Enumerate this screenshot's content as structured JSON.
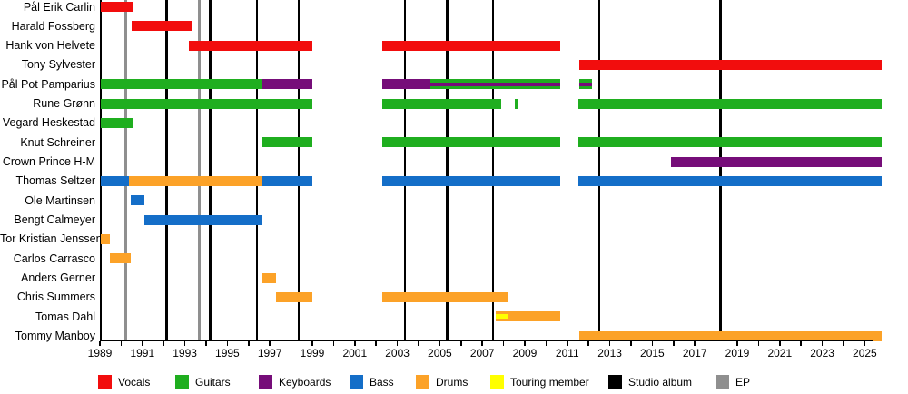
{
  "chart_data": {
    "type": "timeline",
    "description": "Band members timeline with instrument roles and release markers",
    "x_axis": {
      "start_year": 1989,
      "end_year": 2025,
      "tick_label_years": [
        1989,
        1991,
        1993,
        1995,
        1997,
        1999,
        2001,
        2003,
        2005,
        2007,
        2009,
        2011,
        2013,
        2015,
        2017,
        2019,
        2021,
        2023,
        2025
      ]
    },
    "role_colors": {
      "vocals": "#f20d0d",
      "guitars": "#1fae1f",
      "keyboards": "#760d79",
      "bass": "#146ec8",
      "drums": "#fca228",
      "touring": "#ffff00"
    },
    "releases": {
      "studio_album_color": "#000000",
      "ep_color": "#8f8f8f",
      "studio_album_years": [
        1992.15,
        1994.2,
        1996.4,
        1998.35,
        2003.35,
        2005.35,
        2007.5,
        2012.5,
        2018.2
      ],
      "ep_years": [
        1990.2,
        1993.7
      ]
    },
    "legend": [
      {
        "label": "Vocals",
        "color": "#f20d0d"
      },
      {
        "label": "Guitars",
        "color": "#1fae1f"
      },
      {
        "label": "Keyboards",
        "color": "#760d79"
      },
      {
        "label": "Bass",
        "color": "#146ec8"
      },
      {
        "label": "Drums",
        "color": "#fca228"
      },
      {
        "label": "Touring member",
        "color": "#ffff00"
      },
      {
        "label": "Studio album",
        "color": "#000000"
      },
      {
        "label": "EP",
        "color": "#8f8f8f"
      }
    ],
    "members": [
      {
        "name": "Pål Erik Carlin",
        "segments": [
          {
            "roles": [
              "vocals"
            ],
            "start": 1989.05,
            "end": 1990.55
          }
        ]
      },
      {
        "name": "Harald Fossberg",
        "segments": [
          {
            "roles": [
              "vocals"
            ],
            "start": 1990.5,
            "end": 1993.3
          }
        ]
      },
      {
        "name": "Hank von Helvete",
        "segments": [
          {
            "roles": [
              "vocals"
            ],
            "start": 1993.2,
            "end": 1999.0
          },
          {
            "roles": [
              "vocals"
            ],
            "start": 2002.3,
            "end": 2010.65
          }
        ]
      },
      {
        "name": "Tony Sylvester",
        "segments": [
          {
            "roles": [
              "vocals"
            ],
            "start": 2011.55,
            "end": 2025.8
          }
        ]
      },
      {
        "name": "Pål Pot Pamparius",
        "segments": [
          {
            "roles": [
              "guitars"
            ],
            "start": 1989.05,
            "end": 1996.65
          },
          {
            "roles": [
              "keyboards"
            ],
            "start": 1996.65,
            "end": 1999.0
          },
          {
            "roles": [
              "keyboards"
            ],
            "start": 2002.3,
            "end": 2004.55
          },
          {
            "roles": [
              "guitars",
              "keyboards"
            ],
            "start": 2004.55,
            "end": 2010.65
          },
          {
            "roles": [
              "guitars",
              "keyboards"
            ],
            "start": 2011.55,
            "end": 2012.15
          }
        ]
      },
      {
        "name": "Rune Grønn",
        "segments": [
          {
            "roles": [
              "guitars"
            ],
            "start": 1989.05,
            "end": 1999.0
          },
          {
            "roles": [
              "guitars"
            ],
            "start": 2002.3,
            "end": 2007.9
          },
          {
            "roles": [
              "guitars"
            ],
            "start": 2008.55,
            "end": 2008.65
          },
          {
            "roles": [
              "guitars"
            ],
            "start": 2011.5,
            "end": 2025.8
          }
        ]
      },
      {
        "name": "Vegard Heskestad",
        "segments": [
          {
            "roles": [
              "guitars"
            ],
            "start": 1989.05,
            "end": 1990.55
          }
        ]
      },
      {
        "name": "Knut Schreiner",
        "segments": [
          {
            "roles": [
              "guitars"
            ],
            "start": 1996.65,
            "end": 1999.0
          },
          {
            "roles": [
              "guitars"
            ],
            "start": 2002.3,
            "end": 2010.65
          },
          {
            "roles": [
              "guitars"
            ],
            "start": 2011.5,
            "end": 2025.8
          }
        ]
      },
      {
        "name": "Crown Prince H-M",
        "segments": [
          {
            "roles": [
              "keyboards"
            ],
            "start": 2015.9,
            "end": 2025.8
          }
        ]
      },
      {
        "name": "Thomas Seltzer",
        "segments": [
          {
            "roles": [
              "bass"
            ],
            "start": 1989.05,
            "end": 1990.35
          },
          {
            "roles": [
              "drums"
            ],
            "start": 1990.35,
            "end": 1996.65
          },
          {
            "roles": [
              "bass"
            ],
            "start": 1996.65,
            "end": 1999.0
          },
          {
            "roles": [
              "bass"
            ],
            "start": 2002.3,
            "end": 2010.65
          },
          {
            "roles": [
              "bass"
            ],
            "start": 2011.5,
            "end": 2025.8
          }
        ]
      },
      {
        "name": "Ole Martinsen",
        "segments": [
          {
            "roles": [
              "bass"
            ],
            "start": 1990.45,
            "end": 1991.1
          }
        ]
      },
      {
        "name": "Bengt Calmeyer",
        "segments": [
          {
            "roles": [
              "bass"
            ],
            "start": 1991.1,
            "end": 1996.65
          }
        ]
      },
      {
        "name": "Tor Kristian Jenssen",
        "segments": [
          {
            "roles": [
              "drums"
            ],
            "start": 1989.05,
            "end": 1989.45
          }
        ]
      },
      {
        "name": "Carlos Carrasco",
        "segments": [
          {
            "roles": [
              "drums"
            ],
            "start": 1989.45,
            "end": 1990.45
          }
        ]
      },
      {
        "name": "Anders Gerner",
        "segments": [
          {
            "roles": [
              "drums"
            ],
            "start": 1996.65,
            "end": 1997.3
          }
        ]
      },
      {
        "name": "Chris Summers",
        "segments": [
          {
            "roles": [
              "drums"
            ],
            "start": 1997.3,
            "end": 1999.0
          },
          {
            "roles": [
              "drums"
            ],
            "start": 2002.3,
            "end": 2008.25
          }
        ]
      },
      {
        "name": "Tomas Dahl",
        "segments": [
          {
            "roles": [
              "drums"
            ],
            "start": 2007.65,
            "end": 2010.65
          },
          {
            "roles": [
              "touring"
            ],
            "start": 2007.65,
            "end": 2008.25,
            "inset": true
          }
        ]
      },
      {
        "name": "Tommy Manboy",
        "segments": [
          {
            "roles": [
              "drums"
            ],
            "start": 2011.55,
            "end": 2025.8
          }
        ]
      }
    ]
  }
}
